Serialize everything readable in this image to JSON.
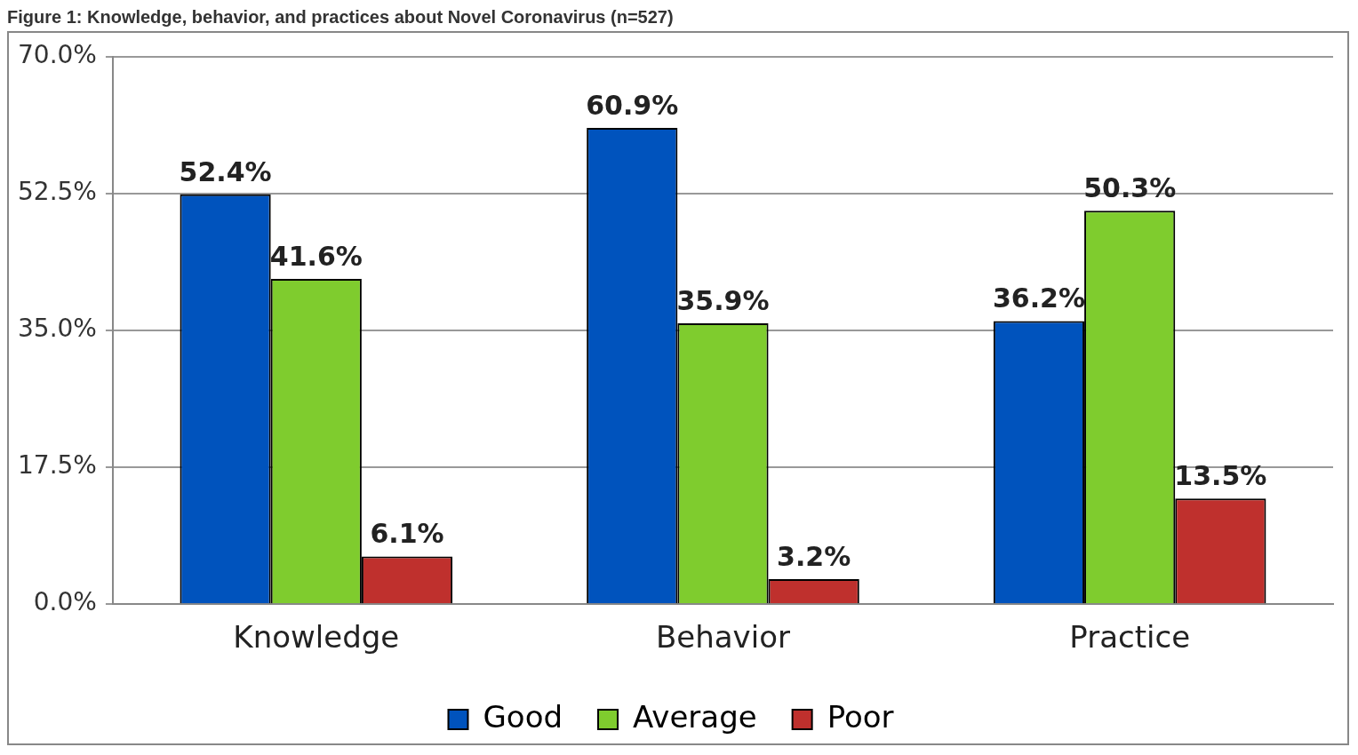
{
  "chart_data": {
    "type": "bar",
    "title": "Figure 1: Knowledge, behavior, and practices about Novel Coronavirus (n=527)",
    "categories": [
      "Knowledge",
      "Behavior",
      "Practice"
    ],
    "series": [
      {
        "name": "Good",
        "color": "#0053bd",
        "values": [
          52.4,
          60.9,
          36.2
        ]
      },
      {
        "name": "Average",
        "color": "#7fcc2e",
        "values": [
          41.6,
          35.9,
          50.3
        ]
      },
      {
        "name": "Poor",
        "color": "#bf302d",
        "values": [
          6.1,
          3.2,
          13.5
        ]
      }
    ],
    "ylim": [
      0,
      70
    ],
    "yticks": [
      {
        "value": 0,
        "label": "0.0%"
      },
      {
        "value": 17.5,
        "label": "17.5%"
      },
      {
        "value": 35,
        "label": "35.0%"
      },
      {
        "value": 52.5,
        "label": "52.5%"
      },
      {
        "value": 70,
        "label": "70.0%"
      }
    ],
    "value_labels": [
      [
        "52.4%",
        "60.9%",
        "36.2%"
      ],
      [
        "41.6%",
        "35.9%",
        "50.3%"
      ],
      [
        "6.1%",
        "3.2%",
        "13.5%"
      ]
    ],
    "grid": "y",
    "legend": "bottom"
  }
}
